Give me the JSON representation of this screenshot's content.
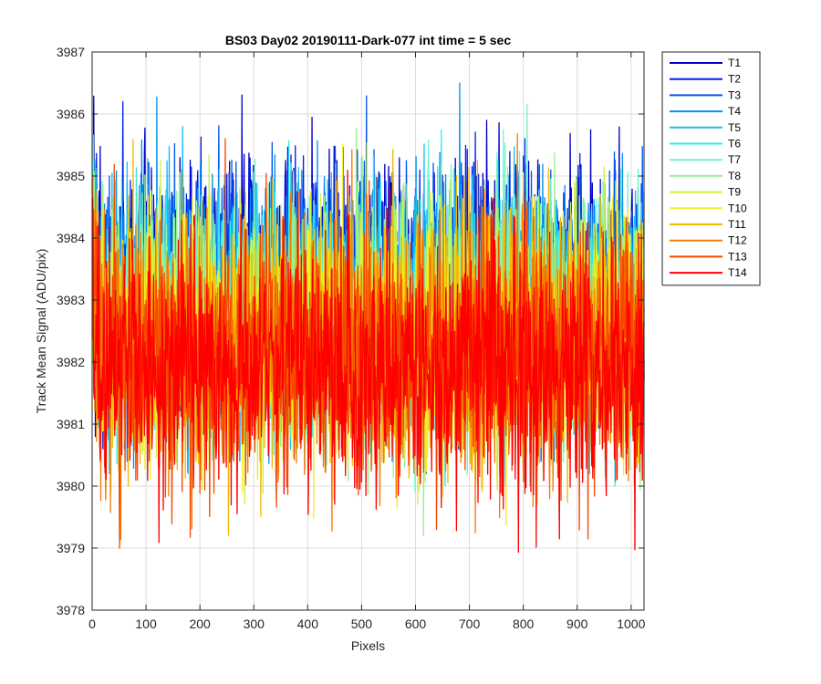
{
  "chart_data": {
    "type": "line",
    "title": "BS03 Day02 20190111-Dark-077 int time = 5 sec",
    "xlabel": "Pixels",
    "ylabel": "Track Mean Signal (ADU/pix)",
    "xlim": [
      0,
      1024
    ],
    "ylim": [
      3978,
      3987
    ],
    "xticks": [
      0,
      100,
      200,
      300,
      400,
      500,
      600,
      700,
      800,
      900,
      1000
    ],
    "yticks": [
      3978,
      3979,
      3980,
      3981,
      3982,
      3983,
      3984,
      3985,
      3986,
      3987
    ],
    "grid": true,
    "legend_position": "outside-top-right",
    "n_points": 1024,
    "series": [
      {
        "name": "T1",
        "color": "#0000c8",
        "mean": 3983.3,
        "spread": 0.95,
        "max": 3986.9,
        "min": 3980.8
      },
      {
        "name": "T2",
        "color": "#0020e8",
        "mean": 3983.2,
        "spread": 0.95,
        "max": 3986.7,
        "min": 3980.6
      },
      {
        "name": "T3",
        "color": "#0058ee",
        "mean": 3983.1,
        "spread": 0.95,
        "max": 3986.5,
        "min": 3980.4
      },
      {
        "name": "T4",
        "color": "#0090f0",
        "mean": 3983.0,
        "spread": 0.95,
        "max": 3986.5,
        "min": 3980.2
      },
      {
        "name": "T5",
        "color": "#18bcf5",
        "mean": 3982.9,
        "spread": 0.95,
        "max": 3986.4,
        "min": 3980.2
      },
      {
        "name": "T6",
        "color": "#30e8f0",
        "mean": 3982.8,
        "spread": 0.95,
        "max": 3986.3,
        "min": 3980.0
      },
      {
        "name": "T7",
        "color": "#70f5c8",
        "mean": 3982.7,
        "spread": 0.95,
        "max": 3986.3,
        "min": 3979.9
      },
      {
        "name": "T8",
        "color": "#98f090",
        "mean": 3982.6,
        "spread": 1.0,
        "max": 3986.5,
        "min": 3979.2
      },
      {
        "name": "T9",
        "color": "#d0f040",
        "mean": 3982.5,
        "spread": 1.0,
        "max": 3986.6,
        "min": 3978.4
      },
      {
        "name": "T10",
        "color": "#f5f020",
        "mean": 3982.4,
        "spread": 1.0,
        "max": 3986.2,
        "min": 3979.3
      },
      {
        "name": "T11",
        "color": "#f5b800",
        "mean": 3982.3,
        "spread": 1.0,
        "max": 3986.0,
        "min": 3978.4
      },
      {
        "name": "T12",
        "color": "#f57c00",
        "mean": 3982.2,
        "spread": 1.0,
        "max": 3985.9,
        "min": 3978.8
      },
      {
        "name": "T13",
        "color": "#f54800",
        "mean": 3982.1,
        "spread": 1.0,
        "max": 3985.6,
        "min": 3978.6
      },
      {
        "name": "T14",
        "color": "#ff0000",
        "mean": 3982.0,
        "spread": 1.0,
        "max": 3985.5,
        "min": 3978.5
      }
    ]
  }
}
